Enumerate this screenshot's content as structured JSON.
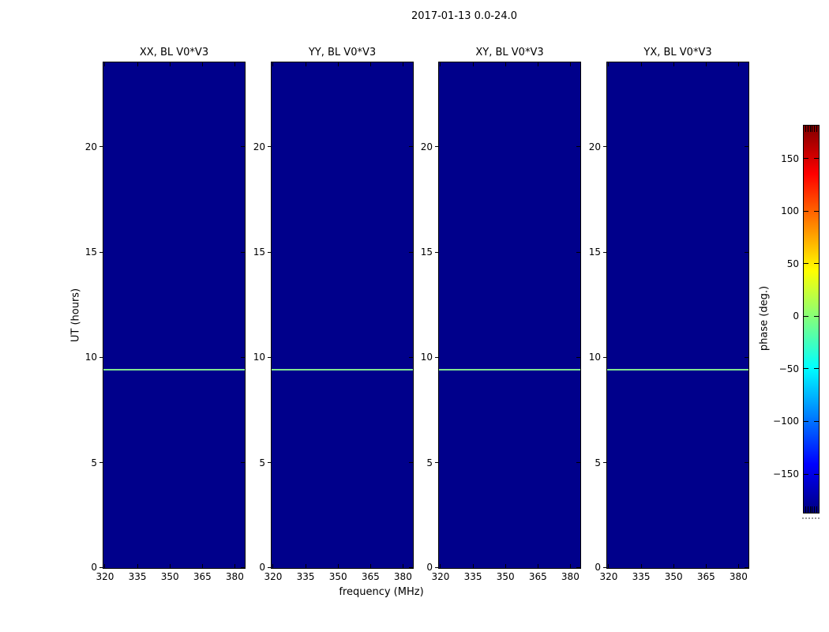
{
  "chart_data": {
    "type": "heatmap",
    "title": "2017-01-13 0.0-24.0",
    "xlabel": "frequency (MHz)",
    "ylabel": "UT (hours)",
    "panels": [
      {
        "title": "XX, BL V0*V3"
      },
      {
        "title": "YY, BL V0*V3"
      },
      {
        "title": "XY, BL V0*V3"
      },
      {
        "title": "YX, BL V0*V3"
      }
    ],
    "x_ticks": [
      320,
      335,
      350,
      365,
      380
    ],
    "xlim": [
      319.3,
      384.6
    ],
    "y_ticks": [
      0,
      5,
      10,
      15,
      20
    ],
    "ylim": [
      0,
      24
    ],
    "fill": {
      "color": "#00008b",
      "phase_deg": -180
    },
    "feature_line": {
      "ut_hours": 9.4,
      "color": "#7fe690",
      "phase_deg": 0
    },
    "colorbar": {
      "label": "phase (deg.)",
      "ticks": [
        150,
        100,
        50,
        0,
        -50,
        -100,
        -150
      ],
      "vmin": -186,
      "vmax": 182,
      "colormap": "jet",
      "end_minor_ticks": 6
    }
  }
}
